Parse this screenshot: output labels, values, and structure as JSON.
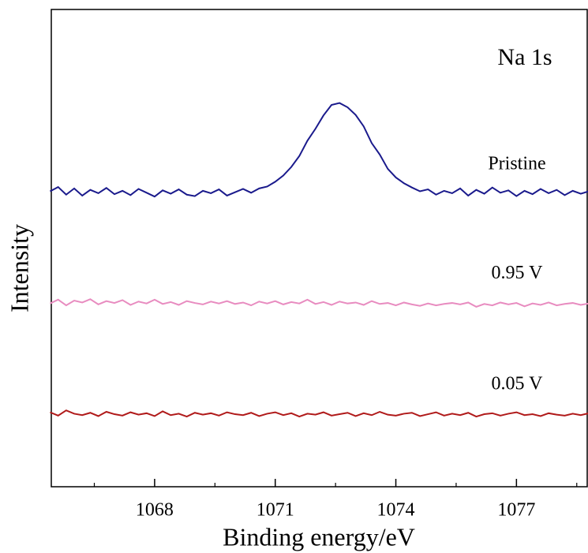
{
  "chart_data": {
    "type": "line",
    "annotation": "Na 1s",
    "x_label": "Binding energy/eV",
    "y_label": "Intensity",
    "x": [
      1065.4,
      1065.6,
      1065.8,
      1066.0,
      1066.2,
      1066.4,
      1066.6,
      1066.8,
      1067.0,
      1067.2,
      1067.4,
      1067.6,
      1067.8,
      1068.0,
      1068.2,
      1068.4,
      1068.6,
      1068.8,
      1069.0,
      1069.2,
      1069.4,
      1069.6,
      1069.8,
      1070.0,
      1070.2,
      1070.4,
      1070.6,
      1070.8,
      1071.0,
      1071.2,
      1071.4,
      1071.6,
      1071.8,
      1072.0,
      1072.2,
      1072.4,
      1072.6,
      1072.8,
      1073.0,
      1073.2,
      1073.4,
      1073.6,
      1073.8,
      1074.0,
      1074.2,
      1074.4,
      1074.6,
      1074.8,
      1075.0,
      1075.2,
      1075.4,
      1075.6,
      1075.8,
      1076.0,
      1076.2,
      1076.4,
      1076.6,
      1076.8,
      1077.0,
      1077.2,
      1077.4,
      1077.6,
      1077.8,
      1078.0,
      1078.2,
      1078.4,
      1078.6,
      1078.8
    ],
    "series": [
      {
        "name": "Pristine",
        "color": "#1a1a8c",
        "values": [
          61.9,
          62.8,
          61.2,
          62.5,
          61.0,
          62.2,
          61.5,
          62.6,
          61.3,
          62.0,
          61.1,
          62.4,
          61.6,
          60.8,
          62.1,
          61.4,
          62.3,
          61.2,
          60.9,
          62.0,
          61.5,
          62.3,
          61.0,
          61.7,
          62.4,
          61.6,
          62.5,
          62.9,
          63.9,
          65.2,
          67.0,
          69.3,
          72.5,
          75.0,
          77.8,
          80.0,
          80.4,
          79.5,
          77.9,
          75.5,
          72.0,
          69.6,
          66.6,
          64.8,
          63.6,
          62.7,
          61.9,
          62.3,
          61.2,
          62.0,
          61.5,
          62.5,
          61.0,
          62.2,
          61.4,
          62.7,
          61.6,
          62.1,
          60.9,
          62.0,
          61.3,
          62.4,
          61.5,
          62.2,
          61.1,
          62.0,
          61.4,
          61.9
        ]
      },
      {
        "name": "0.95 V",
        "color": "#e88cc0",
        "values": [
          38.4,
          39.2,
          38.0,
          39.0,
          38.6,
          39.3,
          38.2,
          38.9,
          38.5,
          39.1,
          38.1,
          38.8,
          38.4,
          39.2,
          38.3,
          38.7,
          38.1,
          38.9,
          38.5,
          38.2,
          38.8,
          38.4,
          38.9,
          38.3,
          38.6,
          38.0,
          38.8,
          38.4,
          38.9,
          38.2,
          38.7,
          38.4,
          39.2,
          38.3,
          38.7,
          38.1,
          38.8,
          38.4,
          38.6,
          38.1,
          38.9,
          38.3,
          38.5,
          38.0,
          38.6,
          38.2,
          37.9,
          38.4,
          38.0,
          38.3,
          38.5,
          38.2,
          38.6,
          37.7,
          38.3,
          38.0,
          38.6,
          38.2,
          38.5,
          37.8,
          38.4,
          38.1,
          38.6,
          38.0,
          38.3,
          38.5,
          38.1,
          38.4
        ]
      },
      {
        "name": "0.05 V",
        "color": "#b01a1a",
        "values": [
          15.6,
          14.9,
          16.0,
          15.3,
          15.0,
          15.5,
          14.8,
          15.7,
          15.2,
          14.9,
          15.6,
          15.1,
          15.4,
          14.8,
          15.8,
          15.0,
          15.3,
          14.7,
          15.5,
          15.1,
          15.4,
          14.9,
          15.6,
          15.2,
          15.0,
          15.5,
          14.8,
          15.3,
          15.6,
          15.0,
          15.4,
          14.7,
          15.3,
          15.1,
          15.6,
          14.9,
          15.2,
          15.5,
          14.8,
          15.4,
          15.0,
          15.7,
          15.1,
          14.9,
          15.3,
          15.5,
          14.8,
          15.2,
          15.6,
          14.9,
          15.3,
          15.0,
          15.5,
          14.7,
          15.2,
          15.4,
          14.9,
          15.3,
          15.6,
          15.0,
          15.2,
          14.8,
          15.4,
          15.1,
          14.9,
          15.3,
          15.0,
          15.4
        ]
      }
    ],
    "xlim": [
      1065.43,
      1078.76
    ],
    "xticks": [
      1068,
      1071,
      1074,
      1077
    ],
    "xminorticks": [
      1066.5,
      1069.5,
      1072.5,
      1075.5,
      1078.5
    ],
    "ylim": [
      0,
      100
    ]
  }
}
